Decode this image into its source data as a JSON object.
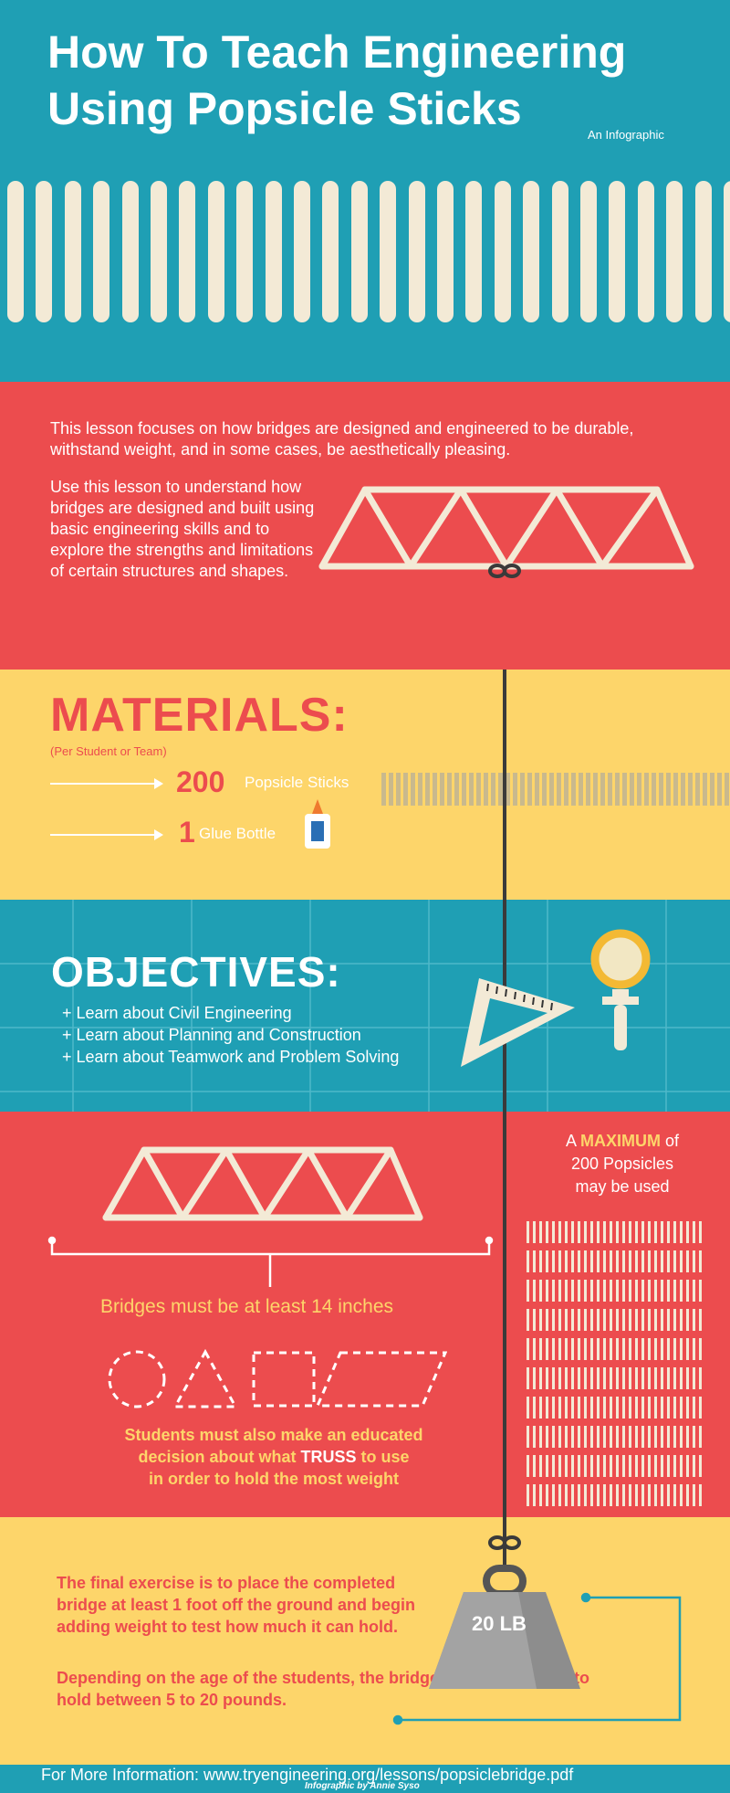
{
  "header": {
    "title_line1": "How To Teach Engineering",
    "title_line2": "Using Popsicle Sticks",
    "subtitle": "An Infographic"
  },
  "intro": {
    "para1": "This lesson focuses on how bridges are designed and engineered to be durable, withstand weight, and in some cases, be aesthetically pleasing.",
    "para2": "Use this lesson to understand how bridges are designed and built using basic engineering skills and to explore the strengths and limitations of certain structures and shapes."
  },
  "materials": {
    "title": "MATERIALS:",
    "note": "(Per Student or Team)",
    "items": [
      {
        "count": "200",
        "label": "Popsicle Sticks"
      },
      {
        "count": "1",
        "label": "Glue Bottle"
      }
    ]
  },
  "objectives": {
    "title": "OBJECTIVES:",
    "items": [
      "+ Learn about Civil Engineering",
      "+ Learn about Planning and Construction",
      "+ Learn about Teamwork and Problem Solving"
    ]
  },
  "rules": {
    "maximum_prefix": "A ",
    "maximum_word": "MAXIMUM",
    "maximum_suffix": " of",
    "maximum_line2": "200 Popsicles",
    "maximum_line3": "may be used",
    "length_rule": "Bridges must be at least 14 inches",
    "truss_line1": "Students must also make an educated",
    "truss_line2_pre": "decision about what ",
    "truss_word": "TRUSS",
    "truss_line2_post": " to use",
    "truss_line3": "in order to hold the most weight"
  },
  "test": {
    "para1": "The final exercise is to place the completed bridge at least 1 foot off the ground and begin adding weight to test how much it can hold.",
    "para2": "Depending on the age of the students, the bridges should be built to hold between 5 to 20 pounds.",
    "weight_label": "20 LB"
  },
  "footer": {
    "info": "For More Information: www.tryengineering.org/lessons/popsiclebridge.pdf",
    "credit": "Infographic by Annie Syso"
  },
  "colors": {
    "teal": "#1f9fb4",
    "red": "#ec4c4e",
    "yellow": "#fdd56a",
    "stick": "#f3ead6"
  },
  "icons": [
    "popsicle-stick-icon",
    "truss-bridge-icon",
    "glue-bottle-icon",
    "set-square-icon",
    "magnifier-icon",
    "weight-icon",
    "shape-outline-icons"
  ]
}
